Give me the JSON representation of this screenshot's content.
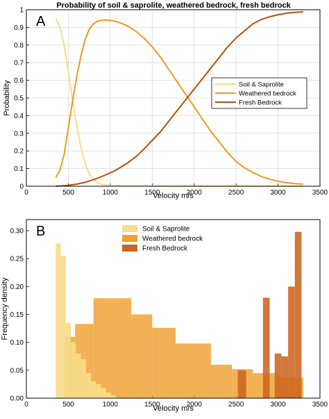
{
  "title": "Probability of soil & saprolite, weathered bedrock, fresh bedrock",
  "chart_data": [
    {
      "panel_label": "A",
      "type": "line",
      "xlabel": "Velocity m/s",
      "ylabel": "Probability",
      "xlim": [
        0,
        3500
      ],
      "ylim": [
        0,
        1
      ],
      "xticks": [
        0,
        500,
        1000,
        1500,
        2000,
        2500,
        3000,
        3500
      ],
      "yticks": [
        0,
        0.1,
        0.2,
        0.3,
        0.4,
        0.5,
        0.6,
        0.7,
        0.8,
        0.9,
        1
      ],
      "ytick_labels": [
        "0",
        "0.1",
        "0.2",
        "0.3",
        "0.4",
        "0.5",
        "0.6",
        "0.7",
        "0.8",
        "0.9",
        "1"
      ],
      "grid": true,
      "legend_position": "right-middle",
      "series": [
        {
          "name": "Soil & Saprolite",
          "color": "#f8dc8a",
          "x": [
            350,
            400,
            450,
            500,
            550,
            600,
            650,
            700,
            750,
            800,
            850,
            900,
            1000,
            1200,
            1500,
            2000,
            2500,
            3000,
            3300
          ],
          "y": [
            0.95,
            0.9,
            0.8,
            0.65,
            0.49,
            0.34,
            0.22,
            0.13,
            0.07,
            0.04,
            0.02,
            0.01,
            0.004,
            0.002,
            0.001,
            0,
            0,
            0,
            0
          ]
        },
        {
          "name": "Weathered bedrock",
          "color": "#ee9a1c",
          "x": [
            350,
            400,
            450,
            500,
            550,
            600,
            650,
            700,
            750,
            800,
            850,
            900,
            950,
            1000,
            1100,
            1200,
            1300,
            1400,
            1500,
            1600,
            1700,
            1800,
            1900,
            2000,
            2100,
            2200,
            2300,
            2400,
            2500,
            2600,
            2700,
            2800,
            2900,
            3000,
            3100,
            3200,
            3300
          ],
          "y": [
            0.05,
            0.09,
            0.18,
            0.33,
            0.48,
            0.62,
            0.74,
            0.83,
            0.89,
            0.92,
            0.935,
            0.94,
            0.942,
            0.94,
            0.93,
            0.91,
            0.88,
            0.84,
            0.79,
            0.73,
            0.66,
            0.59,
            0.52,
            0.45,
            0.38,
            0.31,
            0.25,
            0.19,
            0.14,
            0.105,
            0.078,
            0.055,
            0.04,
            0.028,
            0.02,
            0.015,
            0.012
          ]
        },
        {
          "name": "Fresh Bedrock",
          "color": "#b4500e",
          "x": [
            350,
            500,
            600,
            700,
            800,
            900,
            1000,
            1100,
            1200,
            1300,
            1400,
            1500,
            1600,
            1700,
            1800,
            1900,
            2000,
            2100,
            2200,
            2300,
            2400,
            2500,
            2600,
            2700,
            2800,
            2900,
            3000,
            3100,
            3200,
            3300
          ],
          "y": [
            0,
            0.005,
            0.012,
            0.022,
            0.037,
            0.055,
            0.075,
            0.1,
            0.13,
            0.165,
            0.21,
            0.26,
            0.31,
            0.37,
            0.43,
            0.49,
            0.55,
            0.61,
            0.67,
            0.73,
            0.79,
            0.84,
            0.88,
            0.92,
            0.945,
            0.96,
            0.972,
            0.98,
            0.985,
            0.988
          ]
        }
      ]
    },
    {
      "panel_label": "B",
      "type": "bar",
      "xlabel": "Velocity m/s",
      "ylabel": "Frequency density",
      "xlim": [
        0,
        3500
      ],
      "ylim": [
        0,
        0.32
      ],
      "xticks": [
        0,
        500,
        1000,
        1500,
        2000,
        2500,
        3000,
        3500
      ],
      "yticks": [
        0,
        0.05,
        0.1,
        0.15,
        0.2,
        0.25,
        0.3
      ],
      "ytick_labels": [
        "0.00",
        "0.05",
        "0.10",
        "0.15",
        "0.20",
        "0.25",
        "0.30"
      ],
      "grid": false,
      "legend_position": "top-center",
      "series": [
        {
          "name": "Soil & Saprolite",
          "color": "#f8dc8a",
          "bins": [
            [
              350,
              410,
              0.277
            ],
            [
              410,
              470,
              0.255
            ],
            [
              470,
              530,
              0.135
            ],
            [
              530,
              590,
              0.1
            ],
            [
              590,
              650,
              0.08
            ],
            [
              650,
              710,
              0.07
            ],
            [
              710,
              770,
              0.045
            ],
            [
              770,
              830,
              0.03
            ],
            [
              830,
              890,
              0.025
            ],
            [
              890,
              950,
              0.018
            ],
            [
              950,
              1010,
              0.01
            ],
            [
              1010,
              1070,
              0.005
            ]
          ]
        },
        {
          "name": "Weathered bedrock",
          "color": "#f0a030",
          "bins": [
            [
              460,
              580,
              0.11
            ],
            [
              580,
              700,
              0.133
            ],
            [
              700,
              800,
              0.133
            ],
            [
              800,
              1000,
              0.179
            ],
            [
              1000,
              1250,
              0.179
            ],
            [
              1250,
              1500,
              0.15
            ],
            [
              1500,
              1780,
              0.126
            ],
            [
              1780,
              2000,
              0.098
            ],
            [
              2000,
              2200,
              0.098
            ],
            [
              2200,
              2450,
              0.06
            ],
            [
              2450,
              2700,
              0.052
            ],
            [
              2700,
              3000,
              0.045
            ],
            [
              3000,
              3300,
              0.037
            ]
          ]
        },
        {
          "name": "Fresh Bedrock",
          "color": "#cc6520",
          "bins": [
            [
              2520,
              2620,
              0.05
            ],
            [
              2820,
              2900,
              0.18
            ],
            [
              2960,
              3040,
              0.08
            ],
            [
              3040,
              3120,
              0.075
            ],
            [
              3120,
              3200,
              0.2
            ],
            [
              3200,
              3280,
              0.298
            ]
          ]
        }
      ]
    }
  ]
}
